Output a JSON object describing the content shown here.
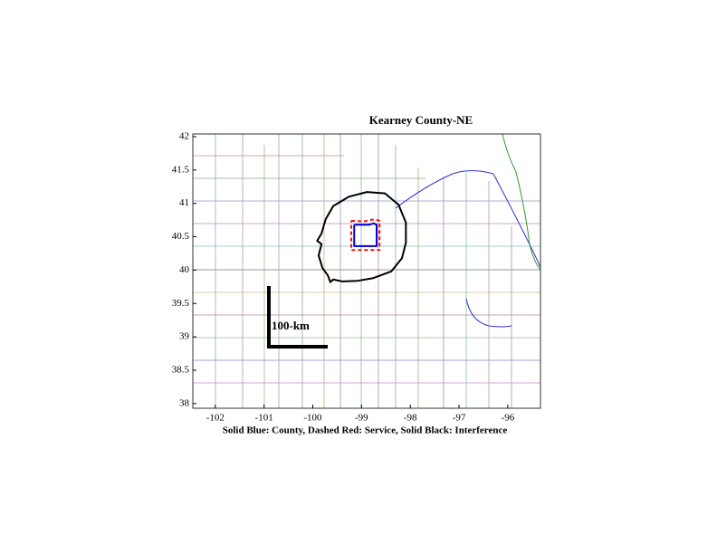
{
  "chart_data": {
    "type": "map",
    "title": "Kearney County-NE",
    "xlabel": "Solid Blue: County, Dashed Red: Service, Solid Black: Interference",
    "annotation": "100-km",
    "xlim": [
      -102.46,
      -95.33
    ],
    "ylim": [
      37.93,
      42.04
    ],
    "xticks": [
      -102,
      -101,
      -100,
      -99,
      -98,
      -97,
      -96
    ],
    "yticks": [
      38,
      38.5,
      39,
      39.5,
      40,
      40.5,
      41,
      41.5,
      42
    ],
    "series": [
      {
        "color": "#0000cc",
        "dash": false,
        "x": [
          -99.15,
          -98.85,
          -98.75,
          -98.69,
          -98.69,
          -99.15,
          -99.15
        ],
        "y": [
          40.68,
          40.68,
          40.7,
          40.68,
          40.36,
          40.36,
          40.68
        ]
      },
      {
        "color": "#ee1111",
        "dash": true,
        "x": [
          -99.21,
          -98.95,
          -98.75,
          -98.63,
          -98.63,
          -99.21,
          -99.21
        ],
        "y": [
          40.74,
          40.73,
          40.76,
          40.74,
          40.3,
          40.3,
          40.74
        ]
      },
      {
        "color": "#000000",
        "dash": false,
        "x": [
          -99.73,
          -99.58,
          -99.26,
          -98.89,
          -98.52,
          -98.24,
          -98.09,
          -98.09,
          -98.17,
          -98.39,
          -98.76,
          -99.08,
          -99.39,
          -99.58,
          -99.64,
          -99.69,
          -99.8,
          -99.88,
          -99.82,
          -99.91,
          -99.82,
          -99.77,
          -99.73
        ],
        "y": [
          40.77,
          40.96,
          41.1,
          41.17,
          41.15,
          40.98,
          40.71,
          40.41,
          40.18,
          39.98,
          39.88,
          39.84,
          39.83,
          39.86,
          39.82,
          39.92,
          40.03,
          40.22,
          40.39,
          40.44,
          40.55,
          40.68,
          40.77
        ]
      }
    ]
  }
}
